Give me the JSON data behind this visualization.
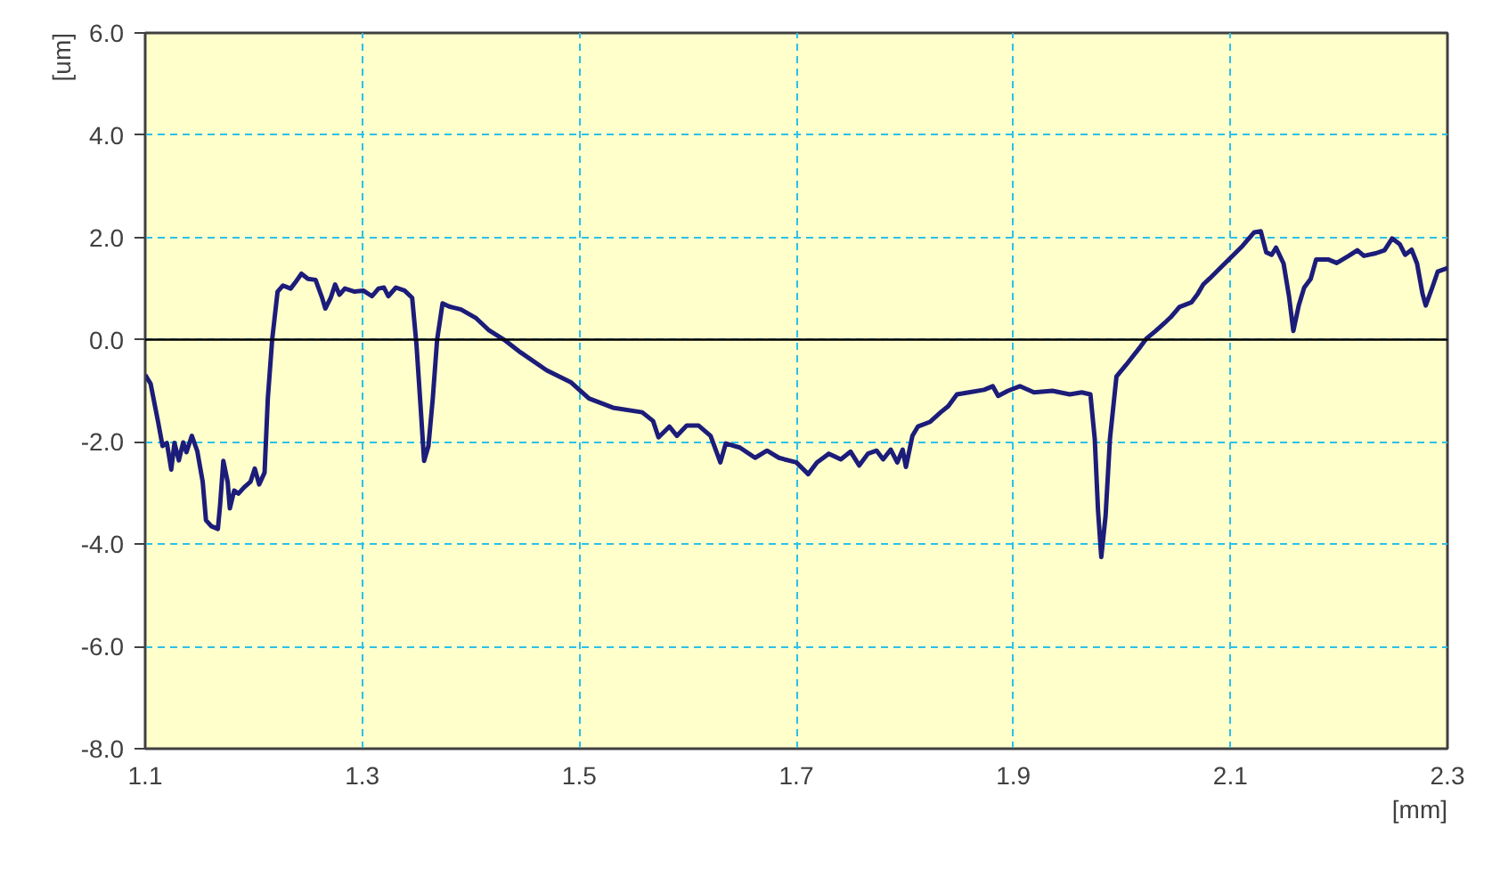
{
  "chart_data": {
    "type": "line",
    "xlabel": "[mm]",
    "ylabel": "[um]",
    "x": [
      1.1,
      1.105,
      1.112,
      1.116,
      1.12,
      1.124,
      1.127,
      1.131,
      1.135,
      1.138,
      1.143,
      1.148,
      1.153,
      1.156,
      1.161,
      1.167,
      1.169,
      1.172,
      1.176,
      1.178,
      1.182,
      1.186,
      1.191,
      1.197,
      1.201,
      1.205,
      1.21,
      1.213,
      1.217,
      1.222,
      1.227,
      1.234,
      1.238,
      1.244,
      1.25,
      1.257,
      1.263,
      1.266,
      1.271,
      1.275,
      1.279,
      1.284,
      1.293,
      1.301,
      1.309,
      1.315,
      1.32,
      1.324,
      1.331,
      1.339,
      1.346,
      1.35,
      1.354,
      1.357,
      1.361,
      1.365,
      1.369,
      1.374,
      1.38,
      1.391,
      1.405,
      1.417,
      1.432,
      1.446,
      1.47,
      1.492,
      1.509,
      1.531,
      1.558,
      1.568,
      1.573,
      1.583,
      1.59,
      1.599,
      1.61,
      1.621,
      1.63,
      1.635,
      1.648,
      1.662,
      1.673,
      1.684,
      1.689,
      1.7,
      1.711,
      1.719,
      1.73,
      1.741,
      1.75,
      1.758,
      1.766,
      1.774,
      1.78,
      1.787,
      1.793,
      1.798,
      1.801,
      1.807,
      1.812,
      1.823,
      1.833,
      1.84,
      1.848,
      1.859,
      1.873,
      1.881,
      1.886,
      1.895,
      1.906,
      1.919,
      1.936,
      1.952,
      1.963,
      1.971,
      1.975,
      1.978,
      1.981,
      1.985,
      1.989,
      1.995,
      2.004,
      2.017,
      2.023,
      2.031,
      2.039,
      2.045,
      2.053,
      2.064,
      2.07,
      2.075,
      2.081,
      2.089,
      2.1,
      2.111,
      2.122,
      2.128,
      2.133,
      2.138,
      2.142,
      2.149,
      2.154,
      2.158,
      2.163,
      2.168,
      2.174,
      2.179,
      2.19,
      2.198,
      2.209,
      2.217,
      2.223,
      2.234,
      2.242,
      2.249,
      2.256,
      2.261,
      2.267,
      2.272,
      2.277,
      2.28,
      2.286,
      2.291,
      2.3
    ],
    "series": [
      {
        "color": "#1c1c7a",
        "values": [
          -0.69,
          -0.86,
          -1.62,
          -2.08,
          -2.02,
          -2.54,
          -2.02,
          -2.36,
          -2.01,
          -2.2,
          -1.88,
          -2.18,
          -2.78,
          -3.53,
          -3.65,
          -3.7,
          -3.24,
          -2.37,
          -2.78,
          -3.3,
          -2.95,
          -3.01,
          -2.89,
          -2.78,
          -2.52,
          -2.83,
          -2.6,
          -1.15,
          0.0,
          0.94,
          1.06,
          1.0,
          1.11,
          1.29,
          1.19,
          1.17,
          0.82,
          0.61,
          0.82,
          1.08,
          0.88,
          1.0,
          0.94,
          0.96,
          0.85,
          1.0,
          1.02,
          0.85,
          1.02,
          0.96,
          0.82,
          -0.1,
          -1.38,
          -2.37,
          -2.08,
          -1.15,
          0.0,
          0.71,
          0.65,
          0.59,
          0.42,
          0.18,
          -0.02,
          -0.25,
          -0.6,
          -0.83,
          -1.15,
          -1.33,
          -1.42,
          -1.59,
          -1.91,
          -1.7,
          -1.88,
          -1.68,
          -1.68,
          -1.88,
          -2.4,
          -2.03,
          -2.11,
          -2.31,
          -2.17,
          -2.31,
          -2.34,
          -2.4,
          -2.63,
          -2.4,
          -2.23,
          -2.34,
          -2.19,
          -2.46,
          -2.23,
          -2.17,
          -2.34,
          -2.15,
          -2.4,
          -2.15,
          -2.49,
          -1.88,
          -1.7,
          -1.61,
          -1.42,
          -1.3,
          -1.07,
          -1.03,
          -0.98,
          -0.91,
          -1.1,
          -1.0,
          -0.91,
          -1.03,
          -1.0,
          -1.07,
          -1.03,
          -1.07,
          -1.94,
          -3.33,
          -4.25,
          -3.44,
          -1.94,
          -0.72,
          -0.49,
          -0.14,
          0.03,
          0.17,
          0.32,
          0.44,
          0.64,
          0.73,
          0.9,
          1.08,
          1.2,
          1.37,
          1.6,
          1.83,
          2.1,
          2.12,
          1.71,
          1.66,
          1.8,
          1.49,
          0.85,
          0.17,
          0.67,
          1.02,
          1.19,
          1.57,
          1.57,
          1.5,
          1.64,
          1.75,
          1.64,
          1.69,
          1.75,
          1.98,
          1.87,
          1.66,
          1.76,
          1.49,
          0.9,
          0.67,
          1.02,
          1.33,
          1.4
        ]
      }
    ],
    "xlim": [
      1.1,
      2.3
    ],
    "ylim": [
      -8,
      6
    ],
    "xticks": [
      1.1,
      1.3,
      1.5,
      1.7,
      1.9,
      2.1,
      2.3
    ],
    "yticks": [
      {
        "value": -8,
        "label": "-8.0"
      },
      {
        "value": -6,
        "label": "-6.0"
      },
      {
        "value": -4,
        "label": "-4.0"
      },
      {
        "value": -2,
        "label": "-2.0"
      },
      {
        "value": 0,
        "label": "0.0"
      },
      {
        "value": 2,
        "label": "2.0"
      },
      {
        "value": 4,
        "label": "4.0"
      },
      {
        "value": 6,
        "label": "6.0"
      }
    ],
    "grid": true,
    "ref_lines": [
      {
        "axis": "y",
        "value": 0,
        "color": "#000000"
      }
    ]
  }
}
